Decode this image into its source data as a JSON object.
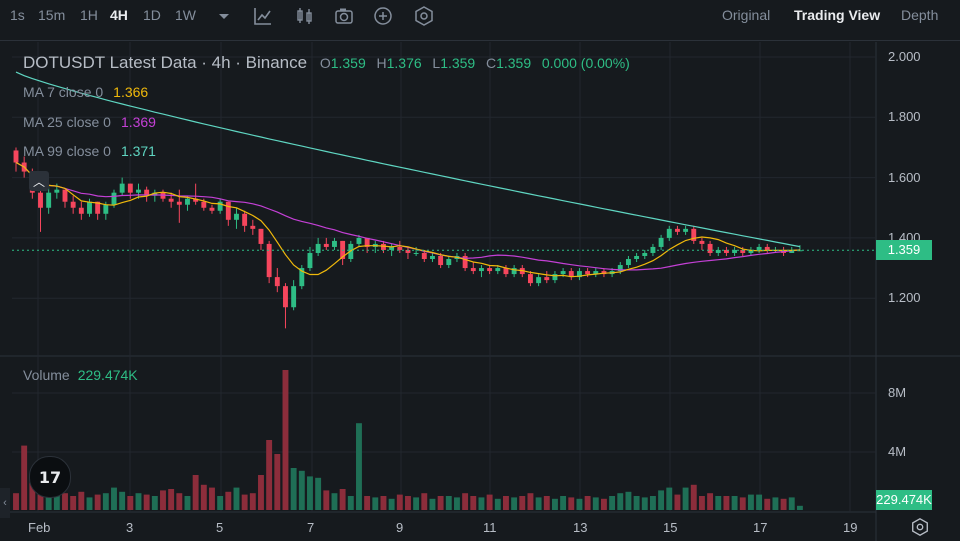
{
  "toolbar": {
    "intervals": [
      {
        "label": "1s",
        "active": false
      },
      {
        "label": "15m",
        "active": false
      },
      {
        "label": "1H",
        "active": false
      },
      {
        "label": "4H",
        "active": true
      },
      {
        "label": "1D",
        "active": false
      },
      {
        "label": "1W",
        "active": false
      }
    ],
    "views": [
      {
        "label": "Original",
        "active": false
      },
      {
        "label": "Trading View",
        "active": true
      },
      {
        "label": "Depth",
        "active": false
      }
    ]
  },
  "legend": {
    "title": "DOTUSDT Latest Data · 4h · Binance",
    "o_label": "O",
    "o_value": "1.359",
    "h_label": "H",
    "h_value": "1.376",
    "l_label": "L",
    "l_value": "1.359",
    "c_label": "C",
    "c_value": "1.359",
    "change": "0.000 (0.00%)",
    "ma7_label": "MA 7 close 0",
    "ma7_value": "1.366",
    "ma25_label": "MA 25 close 0",
    "ma25_value": "1.369",
    "ma99_label": "MA 99 close 0",
    "ma99_value": "1.371",
    "volume_label": "Volume",
    "volume_value": "229.474K"
  },
  "price_axis": [
    "2.000",
    "1.800",
    "1.600",
    "1.400",
    "1.200"
  ],
  "volume_axis": [
    "8M",
    "4M"
  ],
  "time_axis": [
    "Feb",
    "3",
    "5",
    "7",
    "9",
    "11",
    "13",
    "15",
    "17",
    "19"
  ],
  "current_price": "1.359",
  "current_volume": "229.474K",
  "colors": {
    "up": "#2ebd85",
    "down": "#f6465d",
    "ma7": "#f0b90b",
    "ma25": "#c440d6",
    "ma99": "#5fd6c2"
  },
  "chart_data": {
    "type": "candlestick",
    "symbol": "DOTUSDT",
    "interval": "4h",
    "ylim": [
      1.1,
      2.0
    ],
    "candles": [
      [
        1.69,
        1.7,
        1.62,
        1.65
      ],
      [
        1.65,
        1.67,
        1.6,
        1.62
      ],
      [
        1.62,
        1.63,
        1.53,
        1.55
      ],
      [
        1.55,
        1.56,
        1.42,
        1.5
      ],
      [
        1.5,
        1.57,
        1.48,
        1.55
      ],
      [
        1.55,
        1.58,
        1.53,
        1.56
      ],
      [
        1.56,
        1.56,
        1.5,
        1.52
      ],
      [
        1.52,
        1.54,
        1.48,
        1.5
      ],
      [
        1.5,
        1.52,
        1.46,
        1.48
      ],
      [
        1.48,
        1.53,
        1.47,
        1.52
      ],
      [
        1.52,
        1.52,
        1.46,
        1.48
      ],
      [
        1.48,
        1.52,
        1.46,
        1.51
      ],
      [
        1.51,
        1.56,
        1.5,
        1.55
      ],
      [
        1.55,
        1.6,
        1.54,
        1.58
      ],
      [
        1.58,
        1.58,
        1.53,
        1.55
      ],
      [
        1.55,
        1.58,
        1.53,
        1.56
      ],
      [
        1.56,
        1.57,
        1.52,
        1.54
      ],
      [
        1.54,
        1.56,
        1.52,
        1.55
      ],
      [
        1.55,
        1.56,
        1.52,
        1.53
      ],
      [
        1.53,
        1.55,
        1.5,
        1.52
      ],
      [
        1.52,
        1.56,
        1.45,
        1.51
      ],
      [
        1.51,
        1.54,
        1.49,
        1.53
      ],
      [
        1.53,
        1.58,
        1.51,
        1.52
      ],
      [
        1.52,
        1.53,
        1.49,
        1.5
      ],
      [
        1.5,
        1.51,
        1.48,
        1.49
      ],
      [
        1.49,
        1.53,
        1.48,
        1.52
      ],
      [
        1.52,
        1.52,
        1.44,
        1.46
      ],
      [
        1.46,
        1.5,
        1.43,
        1.48
      ],
      [
        1.48,
        1.49,
        1.42,
        1.44
      ],
      [
        1.44,
        1.46,
        1.41,
        1.43
      ],
      [
        1.43,
        1.43,
        1.36,
        1.38
      ],
      [
        1.38,
        1.39,
        1.25,
        1.27
      ],
      [
        1.27,
        1.3,
        1.22,
        1.24
      ],
      [
        1.24,
        1.25,
        1.1,
        1.17
      ],
      [
        1.17,
        1.26,
        1.16,
        1.24
      ],
      [
        1.24,
        1.31,
        1.23,
        1.3
      ],
      [
        1.3,
        1.37,
        1.29,
        1.35
      ],
      [
        1.35,
        1.4,
        1.34,
        1.38
      ],
      [
        1.38,
        1.4,
        1.36,
        1.37
      ],
      [
        1.37,
        1.4,
        1.36,
        1.39
      ],
      [
        1.39,
        1.39,
        1.31,
        1.33
      ],
      [
        1.33,
        1.39,
        1.32,
        1.38
      ],
      [
        1.38,
        1.41,
        1.37,
        1.4
      ],
      [
        1.4,
        1.4,
        1.35,
        1.37
      ],
      [
        1.37,
        1.39,
        1.35,
        1.38
      ],
      [
        1.38,
        1.39,
        1.35,
        1.36
      ],
      [
        1.36,
        1.38,
        1.34,
        1.37
      ],
      [
        1.37,
        1.39,
        1.35,
        1.36
      ],
      [
        1.36,
        1.37,
        1.33,
        1.35
      ],
      [
        1.35,
        1.37,
        1.34,
        1.35
      ],
      [
        1.35,
        1.36,
        1.32,
        1.33
      ],
      [
        1.33,
        1.35,
        1.32,
        1.34
      ],
      [
        1.34,
        1.35,
        1.3,
        1.31
      ],
      [
        1.31,
        1.34,
        1.3,
        1.33
      ],
      [
        1.33,
        1.35,
        1.32,
        1.34
      ],
      [
        1.34,
        1.35,
        1.29,
        1.3
      ],
      [
        1.3,
        1.32,
        1.28,
        1.29
      ],
      [
        1.29,
        1.31,
        1.27,
        1.3
      ],
      [
        1.3,
        1.31,
        1.28,
        1.29
      ],
      [
        1.29,
        1.31,
        1.28,
        1.3
      ],
      [
        1.3,
        1.31,
        1.27,
        1.28
      ],
      [
        1.28,
        1.31,
        1.27,
        1.3
      ],
      [
        1.3,
        1.31,
        1.27,
        1.28
      ],
      [
        1.28,
        1.29,
        1.24,
        1.25
      ],
      [
        1.25,
        1.28,
        1.24,
        1.27
      ],
      [
        1.27,
        1.29,
        1.25,
        1.26
      ],
      [
        1.26,
        1.29,
        1.25,
        1.28
      ],
      [
        1.28,
        1.3,
        1.27,
        1.29
      ],
      [
        1.29,
        1.3,
        1.26,
        1.27
      ],
      [
        1.27,
        1.3,
        1.26,
        1.29
      ],
      [
        1.29,
        1.3,
        1.27,
        1.28
      ],
      [
        1.28,
        1.3,
        1.27,
        1.29
      ],
      [
        1.29,
        1.3,
        1.27,
        1.28
      ],
      [
        1.28,
        1.3,
        1.27,
        1.29
      ],
      [
        1.29,
        1.32,
        1.28,
        1.31
      ],
      [
        1.31,
        1.34,
        1.3,
        1.33
      ],
      [
        1.33,
        1.35,
        1.32,
        1.34
      ],
      [
        1.34,
        1.36,
        1.33,
        1.35
      ],
      [
        1.35,
        1.38,
        1.34,
        1.37
      ],
      [
        1.37,
        1.41,
        1.36,
        1.4
      ],
      [
        1.4,
        1.44,
        1.39,
        1.43
      ],
      [
        1.43,
        1.44,
        1.41,
        1.42
      ],
      [
        1.42,
        1.44,
        1.41,
        1.43
      ],
      [
        1.43,
        1.44,
        1.38,
        1.39
      ],
      [
        1.39,
        1.4,
        1.36,
        1.38
      ],
      [
        1.38,
        1.39,
        1.34,
        1.35
      ],
      [
        1.35,
        1.37,
        1.34,
        1.36
      ],
      [
        1.36,
        1.37,
        1.34,
        1.35
      ],
      [
        1.35,
        1.37,
        1.34,
        1.36
      ],
      [
        1.36,
        1.37,
        1.34,
        1.35
      ],
      [
        1.35,
        1.37,
        1.34,
        1.36
      ],
      [
        1.36,
        1.38,
        1.35,
        1.37
      ],
      [
        1.37,
        1.38,
        1.35,
        1.36
      ],
      [
        1.36,
        1.37,
        1.35,
        1.36
      ],
      [
        1.36,
        1.37,
        1.34,
        1.35
      ],
      [
        1.35,
        1.37,
        1.35,
        1.36
      ],
      [
        1.359,
        1.376,
        1.359,
        1.359
      ]
    ],
    "volume_ylim": [
      0,
      10
    ],
    "volumes": [
      1.2,
      4.6,
      2.6,
      1.8,
      3.0,
      1.4,
      1.2,
      1.0,
      1.3,
      0.9,
      1.1,
      1.2,
      1.6,
      1.3,
      1.0,
      1.2,
      1.1,
      1.0,
      1.4,
      1.5,
      1.2,
      1.0,
      2.5,
      1.8,
      1.6,
      1.0,
      1.3,
      1.6,
      1.1,
      1.2,
      2.5,
      5.0,
      4.0,
      10.0,
      3.0,
      2.8,
      2.4,
      2.3,
      1.4,
      1.2,
      1.5,
      1.0,
      6.2,
      1.0,
      0.9,
      1.0,
      0.8,
      1.1,
      1.0,
      0.9,
      1.2,
      0.8,
      1.0,
      1.0,
      0.9,
      1.2,
      1.0,
      0.9,
      1.1,
      0.8,
      1.0,
      0.9,
      1.0,
      1.2,
      0.9,
      1.0,
      0.8,
      1.0,
      0.9,
      0.8,
      1.0,
      0.9,
      0.8,
      1.0,
      1.2,
      1.3,
      1.0,
      0.9,
      1.0,
      1.4,
      1.6,
      1.1,
      1.6,
      1.8,
      1.0,
      1.2,
      1.0,
      1.0,
      1.0,
      0.9,
      1.1,
      1.1,
      0.8,
      0.9,
      0.8,
      0.9,
      0.3
    ]
  }
}
